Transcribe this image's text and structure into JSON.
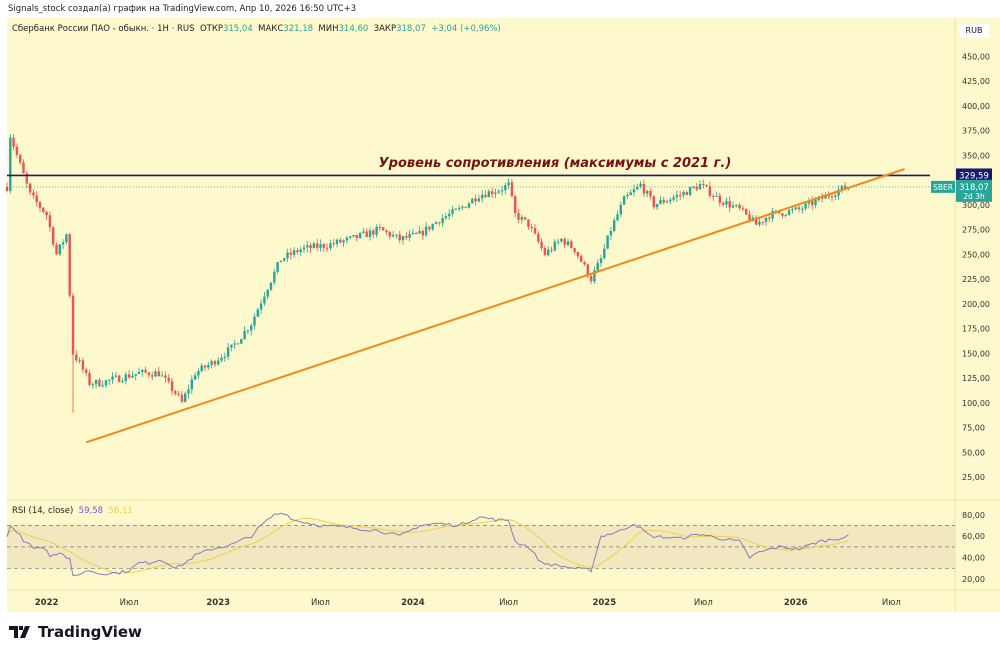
{
  "credit": "Signals_stock создал(а) график на TradingView.com, Апр 10, 2026 16:50 UTC+3",
  "legend": {
    "symbol": "Сбербанк России ПАО - обыкн. · 1H · RUS",
    "open_label": "ОТКР",
    "open": "315,04",
    "high_label": "МАКС",
    "high": "321,18",
    "low_label": "МИН",
    "low": "314,60",
    "close_label": "ЗАКР",
    "close": "318,07",
    "change": "+3,04 (+0,96%)"
  },
  "currency": "RUB",
  "annotation": "Уровень сопротивления (максимумы с 2021 г.)",
  "resistance_label": "329,59",
  "ticker_badge": "SBER",
  "price_label": "318,07",
  "countdown": "2d 3h",
  "rsi_legend": {
    "title": "RSI (14, close)",
    "rsi": "59,58",
    "ma": "56,11"
  },
  "brand": "TradingView",
  "colors": {
    "up": "#26a69a",
    "down": "#ef5350",
    "resistance": "#1a1a6e",
    "trend": "#f08a1c",
    "rsi": "#8a7bb8",
    "rsi_ma": "#f0d045",
    "annotation": "#7a1010"
  },
  "chart_data": {
    "type": "candlestick",
    "x_unit": "week index",
    "x_ticks": [
      {
        "label": "2022",
        "i": 12
      },
      {
        "label": "Июл",
        "i": 37
      },
      {
        "label": "2023",
        "i": 64
      },
      {
        "label": "Июл",
        "i": 95
      },
      {
        "label": "2024",
        "i": 123
      },
      {
        "label": "Июл",
        "i": 152
      },
      {
        "label": "2025",
        "i": 181
      },
      {
        "label": "Июл",
        "i": 211
      },
      {
        "label": "2026",
        "i": 239
      },
      {
        "label": "Июл",
        "i": 268
      }
    ],
    "y_ticks": [
      450,
      425,
      400,
      375,
      350,
      300,
      275,
      250,
      225,
      200,
      175,
      150,
      125,
      100,
      75,
      50,
      25
    ],
    "ylim": [
      25,
      450
    ],
    "price_path": [
      [
        1,
        370
      ],
      [
        4,
        340
      ],
      [
        7,
        310
      ],
      [
        12,
        290
      ],
      [
        15,
        250
      ],
      [
        18,
        270
      ],
      [
        20,
        150
      ],
      [
        22,
        140
      ],
      [
        25,
        120
      ],
      [
        28,
        120
      ],
      [
        34,
        125
      ],
      [
        40,
        130
      ],
      [
        46,
        130
      ],
      [
        51,
        110
      ],
      [
        53,
        100
      ],
      [
        57,
        130
      ],
      [
        62,
        140
      ],
      [
        68,
        155
      ],
      [
        74,
        180
      ],
      [
        78,
        210
      ],
      [
        83,
        245
      ],
      [
        89,
        255
      ],
      [
        98,
        260
      ],
      [
        104,
        265
      ],
      [
        113,
        275
      ],
      [
        119,
        265
      ],
      [
        125,
        270
      ],
      [
        131,
        285
      ],
      [
        137,
        295
      ],
      [
        143,
        310
      ],
      [
        149,
        315
      ],
      [
        152,
        320
      ],
      [
        154,
        290
      ],
      [
        158,
        280
      ],
      [
        163,
        250
      ],
      [
        168,
        265
      ],
      [
        172,
        255
      ],
      [
        177,
        225
      ],
      [
        180,
        245
      ],
      [
        183,
        275
      ],
      [
        187,
        305
      ],
      [
        192,
        320
      ],
      [
        196,
        300
      ],
      [
        204,
        310
      ],
      [
        210,
        320
      ],
      [
        216,
        305
      ],
      [
        222,
        295
      ],
      [
        227,
        280
      ],
      [
        231,
        290
      ],
      [
        240,
        295
      ],
      [
        246,
        305
      ],
      [
        252,
        315
      ],
      [
        255,
        318
      ]
    ],
    "resistance": 329.59,
    "last_price": 318.07,
    "trendline": [
      [
        24,
        60
      ],
      [
        272,
        336
      ]
    ],
    "rsi": {
      "levels": [
        80,
        70,
        50,
        30,
        20
      ],
      "ylim": [
        10,
        88
      ],
      "y_ticks": [
        80,
        60,
        40,
        20
      ],
      "points": [
        [
          1,
          70
        ],
        [
          4,
          62
        ],
        [
          5,
          55
        ],
        [
          8,
          50
        ],
        [
          12,
          48
        ],
        [
          13,
          42
        ],
        [
          16,
          45
        ],
        [
          19,
          38
        ],
        [
          20,
          22
        ],
        [
          22,
          25
        ],
        [
          25,
          28
        ],
        [
          28,
          25
        ],
        [
          34,
          26
        ],
        [
          37,
          28
        ],
        [
          40,
          35
        ],
        [
          43,
          35
        ],
        [
          46,
          38
        ],
        [
          49,
          35
        ],
        [
          51,
          30
        ],
        [
          54,
          35
        ],
        [
          57,
          42
        ],
        [
          62,
          48
        ],
        [
          68,
          52
        ],
        [
          74,
          60
        ],
        [
          77,
          70
        ],
        [
          81,
          80
        ],
        [
          84,
          82
        ],
        [
          87,
          75
        ],
        [
          95,
          70
        ],
        [
          104,
          68
        ],
        [
          113,
          65
        ],
        [
          119,
          60
        ],
        [
          125,
          70
        ],
        [
          131,
          72
        ],
        [
          137,
          70
        ],
        [
          143,
          78
        ],
        [
          149,
          75
        ],
        [
          152,
          75
        ],
        [
          154,
          55
        ],
        [
          158,
          50
        ],
        [
          162,
          35
        ],
        [
          168,
          32
        ],
        [
          172,
          30
        ],
        [
          177,
          28
        ],
        [
          180,
          60
        ],
        [
          186,
          65
        ],
        [
          190,
          72
        ],
        [
          195,
          60
        ],
        [
          204,
          58
        ],
        [
          210,
          62
        ],
        [
          216,
          58
        ],
        [
          222,
          55
        ],
        [
          225,
          40
        ],
        [
          228,
          45
        ],
        [
          234,
          50
        ],
        [
          240,
          48
        ],
        [
          246,
          55
        ],
        [
          252,
          58
        ],
        [
          255,
          60
        ]
      ]
    }
  }
}
